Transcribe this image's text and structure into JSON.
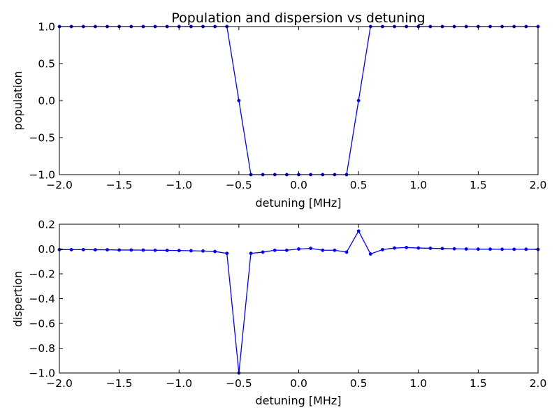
{
  "chart_data": [
    {
      "type": "line",
      "title": "Population and dispersion vs detuning",
      "xlabel": "detuning [MHz]",
      "ylabel": "population",
      "xlim": [
        -2.0,
        2.0
      ],
      "ylim": [
        -1.0,
        1.0
      ],
      "xticks": [
        -2.0,
        -1.5,
        -1.0,
        -0.5,
        0.0,
        0.5,
        1.0,
        1.5,
        2.0
      ],
      "xtick_labels": [
        "−2.0",
        "−1.5",
        "−1.0",
        "−0.5",
        "0.0",
        "0.5",
        "1.0",
        "1.5",
        "2.0"
      ],
      "yticks": [
        -1.0,
        -0.5,
        0.0,
        0.5,
        1.0
      ],
      "ytick_labels": [
        "−1.0",
        "−0.5",
        "0.0",
        "0.5",
        "1.0"
      ],
      "grid": false,
      "series": [
        {
          "color": "#0000ff",
          "marker": "dot",
          "x": [
            -2.0,
            -1.9,
            -1.8,
            -1.7,
            -1.6,
            -1.5,
            -1.4,
            -1.3,
            -1.2,
            -1.1,
            -1.0,
            -0.9,
            -0.8,
            -0.7,
            -0.6,
            -0.5,
            -0.4,
            -0.3,
            -0.2,
            -0.1,
            0.0,
            0.1,
            0.2,
            0.3,
            0.4,
            0.5,
            0.6,
            0.7,
            0.8,
            0.9,
            1.0,
            1.1,
            1.2,
            1.3,
            1.4,
            1.5,
            1.6,
            1.7,
            1.8,
            1.9,
            2.0
          ],
          "y": [
            1.0,
            1.0,
            1.0,
            1.0,
            1.0,
            1.0,
            1.0,
            1.0,
            1.0,
            1.0,
            1.0,
            1.0,
            1.0,
            1.0,
            1.0,
            0.0,
            -1.0,
            -1.0,
            -1.0,
            -1.0,
            -1.0,
            -1.0,
            -1.0,
            -1.0,
            -1.0,
            0.0,
            1.0,
            1.0,
            1.0,
            1.0,
            1.0,
            1.0,
            1.0,
            1.0,
            1.0,
            1.0,
            1.0,
            1.0,
            1.0,
            1.0,
            1.0
          ]
        }
      ]
    },
    {
      "type": "line",
      "title": "",
      "xlabel": "detuning [MHz]",
      "ylabel": "dispertion",
      "xlim": [
        -2.0,
        2.0
      ],
      "ylim": [
        -1.0,
        0.2
      ],
      "xticks": [
        -2.0,
        -1.5,
        -1.0,
        -0.5,
        0.0,
        0.5,
        1.0,
        1.5,
        2.0
      ],
      "xtick_labels": [
        "−2.0",
        "−1.5",
        "−1.0",
        "−0.5",
        "0.0",
        "0.5",
        "1.0",
        "1.5",
        "2.0"
      ],
      "yticks": [
        -1.0,
        -0.8,
        -0.6,
        -0.4,
        -0.2,
        0.0,
        0.2
      ],
      "ytick_labels": [
        "−1.0",
        "−0.8",
        "−0.6",
        "−0.4",
        "−0.2",
        "0.0",
        "0.2"
      ],
      "grid": false,
      "series": [
        {
          "color": "#0000ff",
          "marker": "dot",
          "x": [
            -2.0,
            -1.9,
            -1.8,
            -1.7,
            -1.6,
            -1.5,
            -1.4,
            -1.3,
            -1.2,
            -1.1,
            -1.0,
            -0.9,
            -0.8,
            -0.7,
            -0.6,
            -0.5,
            -0.4,
            -0.3,
            -0.2,
            -0.1,
            0.0,
            0.1,
            0.2,
            0.3,
            0.4,
            0.5,
            0.6,
            0.7,
            0.8,
            0.9,
            1.0,
            1.1,
            1.2,
            1.3,
            1.4,
            1.5,
            1.6,
            1.7,
            1.8,
            1.9,
            2.0
          ],
          "y": [
            -0.005,
            -0.005,
            -0.005,
            -0.006,
            -0.006,
            -0.008,
            -0.008,
            -0.009,
            -0.01,
            -0.011,
            -0.012,
            -0.014,
            -0.016,
            -0.02,
            -0.035,
            -1.0,
            -0.035,
            -0.025,
            -0.01,
            -0.01,
            0.0,
            0.005,
            -0.01,
            -0.01,
            -0.025,
            0.145,
            -0.04,
            -0.005,
            0.008,
            0.012,
            0.008,
            0.006,
            0.004,
            0.002,
            0.0,
            -0.001,
            -0.001,
            -0.002,
            -0.002,
            -0.002,
            -0.003
          ]
        }
      ]
    }
  ]
}
